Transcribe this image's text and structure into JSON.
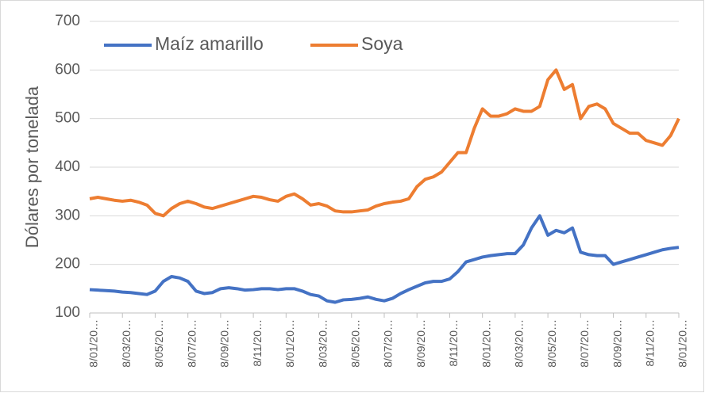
{
  "chart_data": {
    "type": "line",
    "y_label": "Dólares por tonelada",
    "categories": [
      "8/01/20…",
      null,
      null,
      null,
      "8/03/20…",
      null,
      null,
      null,
      "8/05/20…",
      null,
      null,
      null,
      "8/07/20…",
      null,
      null,
      null,
      "8/09/20…",
      null,
      null,
      null,
      "8/11/20…",
      null,
      null,
      null,
      "8/01/20…",
      null,
      null,
      null,
      "8/03/20…",
      null,
      null,
      null,
      "8/05/20…",
      null,
      null,
      null,
      "8/07/20…",
      null,
      null,
      null,
      "8/09/20…",
      null,
      null,
      null,
      "8/11/20…",
      null,
      null,
      null,
      "8/01/20…",
      null,
      null,
      null,
      "8/03/20…",
      null,
      null,
      null,
      "8/05/20…",
      null,
      null,
      null,
      "8/07/20…",
      null,
      null,
      null,
      "8/09/20…",
      null,
      null,
      null,
      "8/11/20…",
      null,
      null,
      null,
      "8/01/20…"
    ],
    "series": [
      {
        "name": "Maíz amarillo",
        "color": "#4472c4",
        "values": [
          148,
          147,
          146,
          145,
          143,
          142,
          140,
          138,
          145,
          165,
          175,
          172,
          165,
          145,
          140,
          142,
          150,
          152,
          150,
          147,
          148,
          150,
          150,
          148,
          150,
          150,
          145,
          138,
          135,
          125,
          122,
          127,
          128,
          130,
          133,
          128,
          125,
          130,
          140,
          148,
          155,
          162,
          165,
          165,
          170,
          185,
          205,
          210,
          215,
          218,
          220,
          222,
          222,
          240,
          275,
          300,
          260,
          270,
          265,
          275,
          225,
          220,
          218,
          218,
          200,
          205,
          210,
          215,
          220,
          225,
          230,
          233,
          235
        ]
      },
      {
        "name": "Soya",
        "color": "#ed7d31",
        "values": [
          335,
          338,
          335,
          332,
          330,
          332,
          328,
          322,
          305,
          300,
          315,
          325,
          330,
          325,
          318,
          315,
          320,
          325,
          330,
          335,
          340,
          338,
          333,
          330,
          340,
          345,
          335,
          322,
          325,
          320,
          310,
          308,
          308,
          310,
          312,
          320,
          325,
          328,
          330,
          335,
          360,
          375,
          380,
          390,
          410,
          430,
          430,
          480,
          520,
          505,
          505,
          510,
          520,
          515,
          515,
          525,
          580,
          600,
          560,
          570,
          500,
          525,
          530,
          520,
          490,
          480,
          470,
          470,
          455,
          450,
          445,
          465,
          500
        ]
      }
    ],
    "ylim": [
      100,
      700
    ],
    "yticks": [
      100,
      200,
      300,
      400,
      500,
      600,
      700
    ],
    "grid": true,
    "legend": "top-left"
  }
}
